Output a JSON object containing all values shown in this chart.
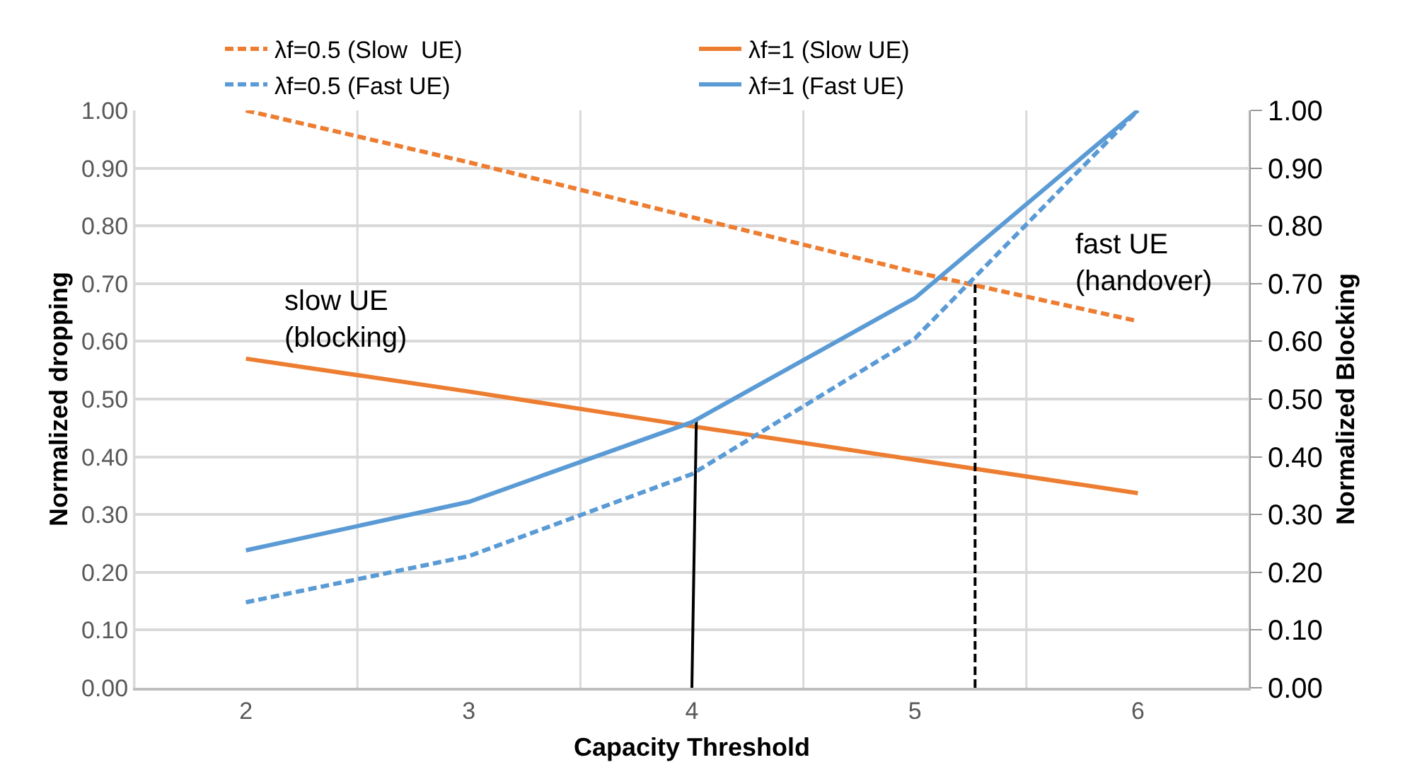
{
  "chart_data": {
    "type": "line",
    "xlabel": "Capacity Threshold",
    "ylabel": "Normalized dropping",
    "y2label": "Normalized Blocking",
    "x": [
      2,
      3,
      4,
      5,
      6
    ],
    "xlim": [
      1.5,
      6.5
    ],
    "xticks": [
      {
        "value": 1.5,
        "label": null
      },
      2,
      {
        "value": 2.5,
        "label": null
      },
      3,
      {
        "value": 3.5,
        "label": null
      },
      4,
      {
        "value": 4.5,
        "label": null
      },
      5,
      {
        "value": 5.5,
        "label": null
      },
      6,
      {
        "value": 6.5,
        "label": null
      }
    ],
    "ylim": [
      0,
      1
    ],
    "yticks": [
      {
        "value": 0,
        "label": "0.00"
      },
      {
        "value": 0.1,
        "label": "0.10"
      },
      {
        "value": 0.2,
        "label": "0.20"
      },
      {
        "value": 0.3,
        "label": "0.30"
      },
      {
        "value": 0.4,
        "label": "0.40"
      },
      {
        "value": 0.5,
        "label": "0.50"
      },
      {
        "value": 0.6,
        "label": "0.60"
      },
      {
        "value": 0.7,
        "label": "0.70"
      },
      {
        "value": 0.8,
        "label": "0.80"
      },
      {
        "value": 0.9,
        "label": "0.90"
      },
      {
        "value": 1,
        "label": "1.00"
      }
    ],
    "y2lim": [
      0,
      1
    ],
    "y2ticks": [
      {
        "value": 0,
        "label": "0.00"
      },
      {
        "value": 0.1,
        "label": "0.10"
      },
      {
        "value": 0.2,
        "label": "0.20"
      },
      {
        "value": 0.3,
        "label": "0.30"
      },
      {
        "value": 0.4,
        "label": "0.40"
      },
      {
        "value": 0.5,
        "label": "0.50"
      },
      {
        "value": 0.6,
        "label": "0.60"
      },
      {
        "value": 0.7,
        "label": "0.70"
      },
      {
        "value": 0.8,
        "label": "0.80"
      },
      {
        "value": 0.9,
        "label": "0.90"
      },
      {
        "value": 1,
        "label": "1.00"
      }
    ],
    "grid": true,
    "legend": "top",
    "marker": "none",
    "series": [
      {
        "name": "λf=0.5 (Slow  UE)",
        "color": "#ed7d31",
        "line_style": "dashed",
        "values": [
          1.0,
          0.91,
          0.815,
          0.72,
          0.635
        ]
      },
      {
        "name": "λf=1 (Slow UE)",
        "color": "#ed7d31",
        "line_style": "solid",
        "values": [
          0.57,
          0.513,
          0.453,
          0.395,
          0.337
        ]
      },
      {
        "name": "λf=0.5 (Fast UE)",
        "color": "#5b9bd5",
        "line_style": "dashed",
        "axis": "y2",
        "values": [
          0.148,
          0.228,
          0.37,
          0.605,
          1.0
        ]
      },
      {
        "name": "λf=1 (Fast UE)",
        "color": "#5b9bd5",
        "line_style": "solid",
        "axis": "y2",
        "values": [
          0.238,
          0.322,
          0.46,
          0.675,
          1.0
        ]
      },
      {
        "color": "#000000",
        "line_style": "solid",
        "x": [
          4.0,
          4.02
        ],
        "values": [
          0,
          0.465
        ]
      },
      {
        "color": "#000000",
        "line_style": "dashed",
        "x": [
          5.27,
          5.27
        ],
        "values": [
          0,
          0.7
        ]
      }
    ],
    "annotations": [
      "slow UE\n(blocking)",
      "fast UE\n(handover)"
    ]
  }
}
